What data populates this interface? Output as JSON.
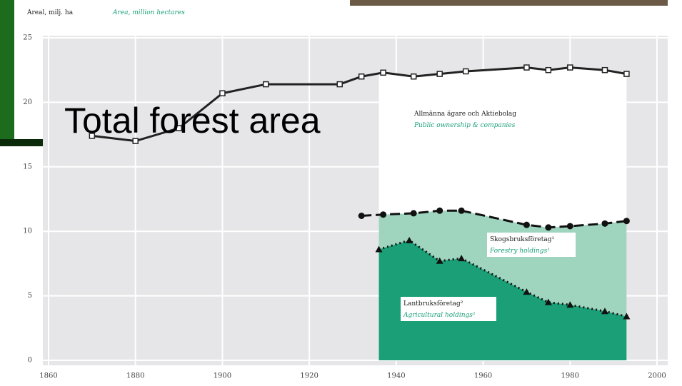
{
  "chart_data": {
    "type": "line",
    "title": "Total forest area",
    "ylabel": "Areal, milj. ha",
    "ylabel_en": "Area, million hectares",
    "xlim": [
      1860,
      2000
    ],
    "ylim": [
      0,
      25
    ],
    "xticks": [
      1860,
      1880,
      1900,
      1920,
      1940,
      1960,
      1980,
      2000
    ],
    "yticks": [
      0,
      5,
      10,
      15,
      20,
      25
    ],
    "grid": true,
    "series": [
      {
        "color": "#222222",
        "style": "solid",
        "marker": "square",
        "fill": "#ffffff",
        "x": [
          1870,
          1880,
          1890,
          1900,
          1910,
          1927,
          1932,
          1937,
          1944,
          1950,
          1956,
          1970,
          1975,
          1980,
          1988,
          1993
        ],
        "values": [
          17.4,
          17.0,
          18.0,
          20.7,
          21.4,
          21.4,
          22.0,
          22.3,
          22.0,
          22.2,
          22.4,
          22.7,
          22.5,
          22.7,
          22.5,
          22.2
        ]
      },
      {
        "name": "Allmänna ägare och Aktiebolag",
        "name_en": "Public ownership & companies",
        "color": "#111111",
        "style": "dashed",
        "marker": "circle",
        "fill": "#9fd5bf",
        "x": [
          1932,
          1937,
          1944,
          1950,
          1955,
          1970,
          1975,
          1980,
          1988,
          1993
        ],
        "values": [
          11.2,
          11.3,
          11.4,
          11.6,
          11.6,
          10.5,
          10.3,
          10.4,
          10.6,
          10.8
        ]
      },
      {
        "name": "Skogsbruksföretag¹",
        "name_en": "Forestry holdings¹",
        "color": "#111111",
        "style": "dotted",
        "marker": "triangle",
        "fill": "#1a9f77",
        "x": [
          1936,
          1943,
          1950,
          1955,
          1970,
          1975,
          1980,
          1988,
          1993
        ],
        "values": [
          8.6,
          9.3,
          7.7,
          7.9,
          5.3,
          4.5,
          4.3,
          3.8,
          3.4
        ]
      }
    ],
    "annotation": "Lantbruksföretag²",
    "annotation_en": "Agricultural holdings²"
  }
}
